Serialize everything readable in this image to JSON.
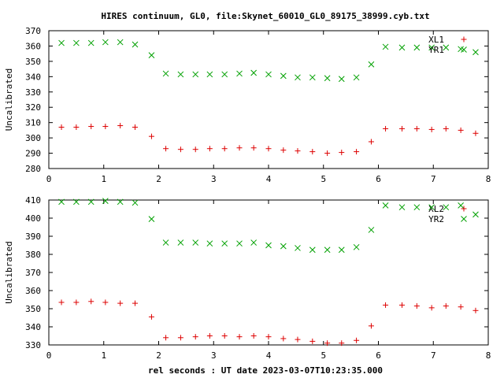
{
  "title": "HIRES continuum, GL0, file:Skynet_60010_GL0_89175_38999.cyb.txt",
  "xlabel": "rel seconds : UT date 2023-03-07T10:23:35.000",
  "colors": {
    "plus": "#dd0000",
    "cross": "#00a000",
    "axis": "#000000"
  },
  "chart_data": [
    {
      "type": "scatter",
      "ylabel": "Uncalibrated",
      "xlim": [
        0,
        8
      ],
      "ylim": [
        280,
        370
      ],
      "xticks": [
        "0",
        "1",
        "2",
        "3",
        "4",
        "5",
        "6",
        "7",
        "8"
      ],
      "yticks": [
        "280",
        "290",
        "300",
        "310",
        "320",
        "330",
        "340",
        "350",
        "360",
        "370"
      ],
      "legend_position": "top-right",
      "x": [
        0.23,
        0.5,
        0.77,
        1.03,
        1.3,
        1.57,
        1.87,
        2.13,
        2.4,
        2.67,
        2.93,
        3.2,
        3.47,
        3.73,
        4.0,
        4.27,
        4.53,
        4.8,
        5.07,
        5.33,
        5.6,
        5.87,
        6.13,
        6.43,
        6.7,
        6.97,
        7.23,
        7.5,
        7.77
      ],
      "series": [
        {
          "name": "XL1",
          "marker": "plus",
          "values": [
            307,
            307,
            307.5,
            307.5,
            308,
            307,
            301,
            293,
            292.5,
            292.5,
            293,
            293,
            293.5,
            293.5,
            293,
            292,
            291.5,
            291,
            290,
            290.5,
            291,
            297.5,
            306,
            306,
            306,
            305.5,
            306,
            305,
            303
          ]
        },
        {
          "name": "YR1",
          "marker": "cross",
          "values": [
            362,
            362,
            362,
            362.5,
            362.5,
            361,
            354,
            342,
            341.5,
            341.5,
            341.5,
            341.5,
            342,
            342.5,
            341.5,
            340.5,
            339.5,
            339.5,
            339,
            338.5,
            339.5,
            348,
            359.5,
            359,
            359,
            359,
            359,
            358,
            356
          ]
        }
      ]
    },
    {
      "type": "scatter",
      "ylabel": "Uncalibrated",
      "xlim": [
        0,
        8
      ],
      "ylim": [
        330,
        410
      ],
      "xticks": [
        "0",
        "1",
        "2",
        "3",
        "4",
        "5",
        "6",
        "7",
        "8"
      ],
      "yticks": [
        "330",
        "340",
        "350",
        "360",
        "370",
        "380",
        "390",
        "400",
        "410"
      ],
      "legend_position": "top-right",
      "x": [
        0.23,
        0.5,
        0.77,
        1.03,
        1.3,
        1.57,
        1.87,
        2.13,
        2.4,
        2.67,
        2.93,
        3.2,
        3.47,
        3.73,
        4.0,
        4.27,
        4.53,
        4.8,
        5.07,
        5.33,
        5.6,
        5.87,
        6.13,
        6.43,
        6.7,
        6.97,
        7.23,
        7.5,
        7.77
      ],
      "series": [
        {
          "name": "XL2",
          "marker": "plus",
          "values": [
            353.5,
            353.5,
            354,
            353.5,
            353,
            353,
            345.5,
            334,
            334,
            334.5,
            335,
            335,
            334.5,
            335,
            334.5,
            333.5,
            333,
            332,
            331,
            331,
            332.5,
            340.5,
            352,
            352,
            351.5,
            350.5,
            351.5,
            351,
            349
          ]
        },
        {
          "name": "YR2",
          "marker": "cross",
          "values": [
            409,
            409,
            409,
            409.5,
            409,
            408.5,
            399.5,
            386.5,
            386.5,
            386.5,
            386,
            386,
            386,
            386.5,
            385,
            384.5,
            383.5,
            382.5,
            382.5,
            382.5,
            384,
            393.5,
            407,
            406,
            406,
            406,
            406,
            407,
            402
          ]
        }
      ]
    }
  ]
}
